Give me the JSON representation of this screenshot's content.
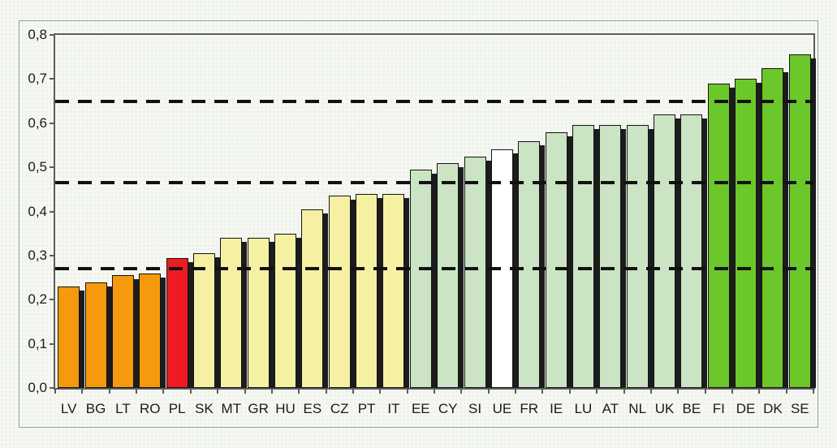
{
  "figure": {
    "background_color": "#f5f8f2",
    "frame_color": "#99a095",
    "axis_color": "#5b5b5b",
    "text_color": "#1a1a1a",
    "title": ""
  },
  "chart_data": {
    "type": "bar",
    "title": "",
    "xlabel": "",
    "ylabel": "",
    "categories": [
      "LV",
      "BG",
      "LT",
      "RO",
      "PL",
      "SK",
      "MT",
      "GR",
      "HU",
      "ES",
      "CZ",
      "PT",
      "IT",
      "EE",
      "CY",
      "SI",
      "UE",
      "FR",
      "IE",
      "LU",
      "AT",
      "NL",
      "UK",
      "BE",
      "FI",
      "DE",
      "DK",
      "SE"
    ],
    "values": [
      0.23,
      0.24,
      0.255,
      0.26,
      0.295,
      0.305,
      0.34,
      0.34,
      0.35,
      0.405,
      0.435,
      0.44,
      0.44,
      0.495,
      0.51,
      0.525,
      0.54,
      0.56,
      0.58,
      0.595,
      0.595,
      0.595,
      0.62,
      0.62,
      0.69,
      0.7,
      0.725,
      0.755
    ],
    "bar_color_names": [
      "orange",
      "orange",
      "orange",
      "orange",
      "red",
      "yellow",
      "yellow",
      "yellow",
      "yellow",
      "yellow",
      "yellow",
      "yellow",
      "yellow",
      "light_green",
      "light_green",
      "light_green",
      "white",
      "light_green",
      "light_green",
      "light_green",
      "light_green",
      "light_green",
      "light_green",
      "light_green",
      "green",
      "green",
      "green",
      "green"
    ],
    "palette": {
      "orange": "#F7990D",
      "red": "#EE1B22",
      "yellow": "#F6F0A2",
      "light_green": "#CBE4C4",
      "white": "#FFFFFF",
      "green": "#6CC72B"
    },
    "shadow_color": "#1c1c1c",
    "ylim": [
      0,
      0.8
    ],
    "y_tick_labels": [
      "0,0",
      "0,1",
      "0,2",
      "0,3",
      "0,4",
      "0,5",
      "0,6",
      "0,7",
      "0,8"
    ],
    "y_tick_values": [
      0,
      0.1,
      0.2,
      0.3,
      0.4,
      0.5,
      0.6,
      0.7,
      0.8
    ],
    "reference_lines": [
      0.27,
      0.465,
      0.65
    ],
    "grid": false,
    "legend": false,
    "decimal_separator": ","
  }
}
